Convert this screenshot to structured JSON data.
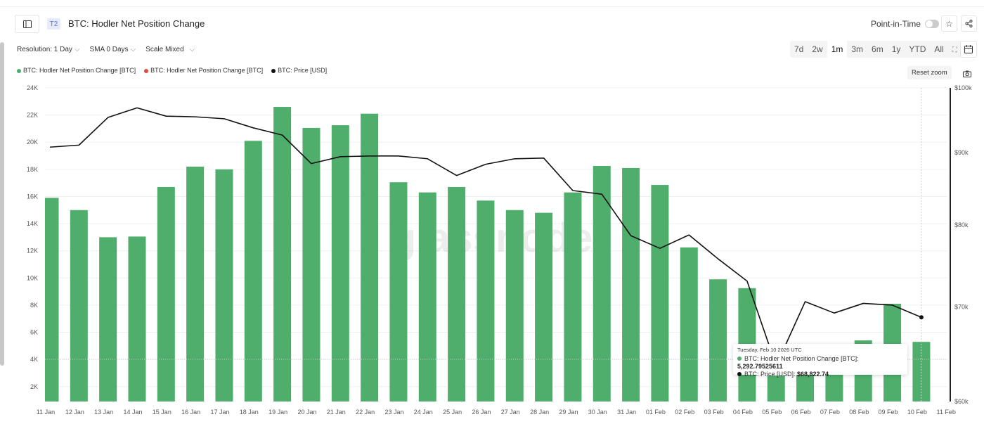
{
  "header": {
    "tag": "T2",
    "title": "BTC: Hodler Net Position Change",
    "point_in_time_label": "Point-in-Time",
    "point_in_time_on": false
  },
  "controls": {
    "resolution": "Resolution: 1 Day",
    "sma": "SMA 0 Days",
    "scale": "Scale Mixed"
  },
  "ranges": [
    {
      "label": "7d"
    },
    {
      "label": "2w"
    },
    {
      "label": "1m",
      "active": true
    },
    {
      "label": "3m"
    },
    {
      "label": "6m"
    },
    {
      "label": "1y"
    },
    {
      "label": "YTD"
    },
    {
      "label": "All"
    }
  ],
  "reset_zoom": "Reset zoom",
  "watermark": "glassnode",
  "icons": {
    "sidebar": "sidebar-toggle-icon",
    "star": "star-icon",
    "share": "share-icon",
    "calendar": "calendar-icon",
    "zoom_select": "zoom-select-icon",
    "camera": "camera-icon"
  },
  "legend": [
    {
      "label": "BTC: Hodler Net Position Change [BTC]",
      "color": "#4fae6c"
    },
    {
      "label": "BTC: Hodler Net Position Change [BTC]",
      "color": "#e04a3f"
    },
    {
      "label": "BTC: Price [USD]",
      "color": "#111111"
    }
  ],
  "tooltip": {
    "date": "Tuesday, Feb 10 2026 UTC",
    "rows": [
      {
        "label": "BTC: Hodler Net Position Change [BTC]: ",
        "value": "5,292.79525611",
        "color": "#4fae6c"
      },
      {
        "label": "BTC: Price [USD]: ",
        "value": "$68,822.74",
        "color": "#111111"
      }
    ]
  },
  "chart_data": {
    "type": "bar+line",
    "categories": [
      "11 Jan",
      "12 Jan",
      "13 Jan",
      "14 Jan",
      "15 Jan",
      "16 Jan",
      "17 Jan",
      "18 Jan",
      "19 Jan",
      "20 Jan",
      "21 Jan",
      "22 Jan",
      "23 Jan",
      "24 Jan",
      "25 Jan",
      "26 Jan",
      "27 Jan",
      "28 Jan",
      "29 Jan",
      "30 Jan",
      "31 Jan",
      "01 Feb",
      "02 Feb",
      "03 Feb",
      "04 Feb",
      "05 Feb",
      "06 Feb",
      "07 Feb",
      "08 Feb",
      "09 Feb",
      "10 Feb",
      "11 Feb"
    ],
    "series": [
      {
        "name": "BTC: Hodler Net Position Change [BTC]",
        "type": "bar",
        "axis": "left",
        "color": "#4fae6c",
        "values": [
          15900,
          15000,
          13000,
          13050,
          16700,
          18200,
          18000,
          20100,
          22600,
          21050,
          21250,
          22100,
          17050,
          16300,
          16700,
          15700,
          15000,
          14800,
          16300,
          18250,
          18100,
          16850,
          12250,
          9900,
          9250,
          2800,
          4000,
          4200,
          5400,
          8100,
          5292.8,
          null
        ]
      },
      {
        "name": "BTC: Price [USD]",
        "type": "line",
        "axis": "right",
        "color": "#111111",
        "values": [
          90800,
          91100,
          95300,
          96800,
          95500,
          95400,
          95100,
          93700,
          92600,
          88400,
          89400,
          89500,
          89500,
          89100,
          86700,
          88300,
          89100,
          89200,
          84600,
          84100,
          78600,
          77000,
          78700,
          75700,
          73000,
          63600,
          70600,
          69300,
          70400,
          70200,
          68822.74,
          null
        ]
      }
    ],
    "y_left": {
      "ticks": [
        "2K",
        "4K",
        "6K",
        "8K",
        "10K",
        "12K",
        "14K",
        "16K",
        "18K",
        "20K",
        "22K",
        "24K"
      ],
      "tick_values": [
        2000,
        4000,
        6000,
        8000,
        10000,
        12000,
        14000,
        16000,
        18000,
        20000,
        22000,
        24000
      ],
      "range": [
        900,
        24000
      ]
    },
    "y_right": {
      "scale": "log",
      "ticks": [
        "$60k",
        "$70k",
        "$80k",
        "$90k",
        "$100k"
      ],
      "tick_values": [
        60000,
        70000,
        80000,
        90000,
        100000
      ],
      "range": [
        60000,
        100000
      ]
    },
    "grid": true,
    "legend_placement": "top-left",
    "hover_index": 30
  }
}
